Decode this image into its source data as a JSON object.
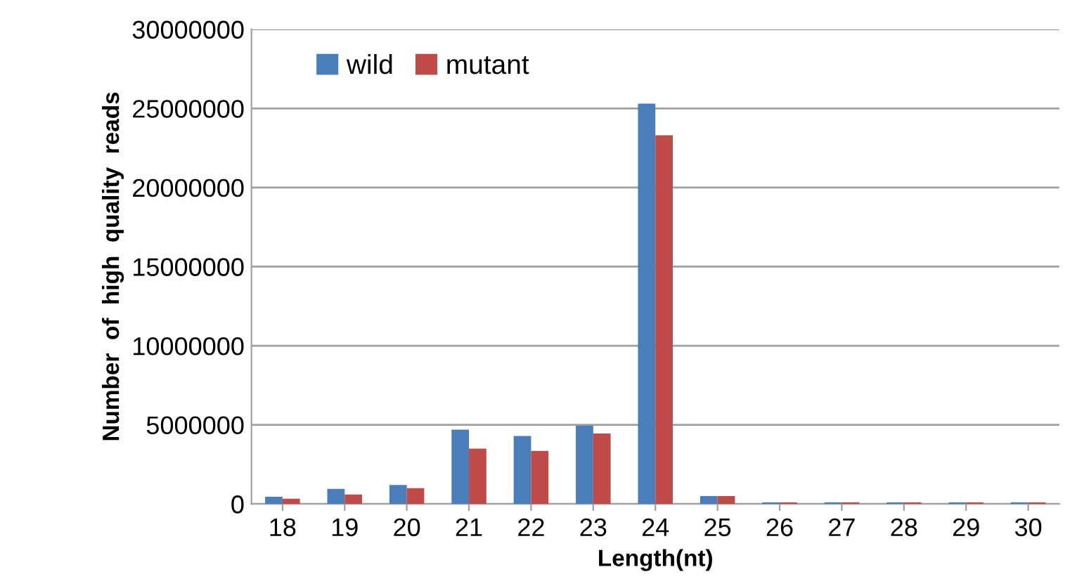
{
  "chart_data": {
    "type": "bar",
    "xlabel": "Length(nt)",
    "ylabel": "Number  of  high  quality  reads",
    "categories": [
      "18",
      "19",
      "20",
      "21",
      "22",
      "23",
      "24",
      "25",
      "26",
      "27",
      "28",
      "29",
      "30"
    ],
    "series": [
      {
        "name": "wild",
        "color": "#4a7ebb",
        "values": [
          450000,
          950000,
          1200000,
          4700000,
          4300000,
          4950000,
          25300000,
          500000,
          100000,
          100000,
          100000,
          100000,
          100000
        ]
      },
      {
        "name": "mutant",
        "color": "#be4b48",
        "values": [
          330000,
          600000,
          1000000,
          3500000,
          3350000,
          4450000,
          23300000,
          500000,
          100000,
          100000,
          100000,
          100000,
          100000
        ]
      }
    ],
    "ylim": [
      0,
      30000000
    ],
    "yticks": [
      0,
      5000000,
      10000000,
      15000000,
      20000000,
      25000000,
      30000000
    ],
    "grid": "y",
    "legend": "top left"
  }
}
